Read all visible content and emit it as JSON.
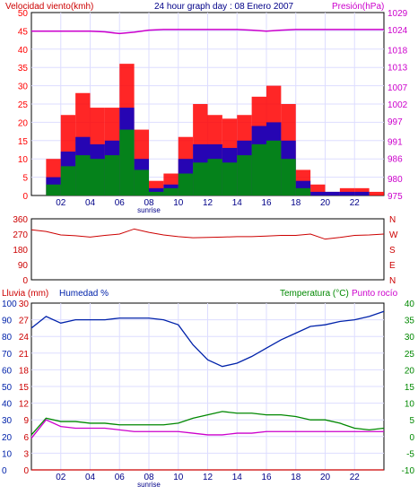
{
  "header": {
    "wind_label": "Velocidad viento(kmh)",
    "title": "24 hour graph day : 08 Enero 2007",
    "pressure_label": "Presión(hPa)"
  },
  "colors": {
    "wind_gust": "#ff0000",
    "wind_avg": "#0000cc",
    "wind_low": "#009900",
    "pressure": "#cc00cc",
    "direction": "#cc0000",
    "humidity": "#0022aa",
    "temperature": "#008800",
    "dewpoint": "#cc00cc",
    "rain": "#cc0000",
    "grid": "#ddddff",
    "axis": "#000000"
  },
  "chart_data": [
    {
      "type": "bar",
      "name": "wind",
      "title": "24 hour graph day : 08 Enero 2007",
      "ylabel": "Velocidad viento(kmh)",
      "ylim": [
        0,
        50
      ],
      "y_ticks": [
        "0",
        "5",
        "10",
        "15",
        "20",
        "25",
        "30",
        "35",
        "40",
        "45",
        "50"
      ],
      "x_ticks": [
        "02",
        "04",
        "06",
        "08",
        "10",
        "12",
        "14",
        "16",
        "18",
        "20",
        "22"
      ],
      "sunrise_label": "sunrise",
      "x": [
        0,
        1,
        2,
        3,
        4,
        5,
        6,
        7,
        8,
        9,
        10,
        11,
        12,
        13,
        14,
        15,
        16,
        17,
        18,
        19,
        20,
        21,
        22,
        23,
        24
      ],
      "series": [
        {
          "name": "gust",
          "values": [
            0,
            10,
            22,
            28,
            24,
            24,
            36,
            18,
            4,
            6,
            16,
            25,
            22,
            21,
            22,
            27,
            30,
            25,
            7,
            3,
            1,
            2,
            2,
            1,
            0
          ]
        },
        {
          "name": "average",
          "values": [
            0,
            5,
            12,
            16,
            14,
            15,
            24,
            10,
            2,
            3,
            10,
            14,
            14,
            13,
            15,
            19,
            20,
            15,
            4,
            1,
            1,
            1,
            1,
            0,
            0
          ]
        },
        {
          "name": "low",
          "values": [
            0,
            3,
            8,
            11,
            10,
            11,
            18,
            7,
            1,
            2,
            6,
            9,
            10,
            9,
            11,
            14,
            15,
            10,
            2,
            0,
            0,
            0,
            0,
            0,
            0
          ]
        }
      ]
    },
    {
      "type": "line",
      "name": "pressure",
      "ylabel": "Presión(hPa)",
      "ylim": [
        975,
        1029
      ],
      "y_ticks": [
        "975",
        "980",
        "986",
        "991",
        "997",
        "1002",
        "1007",
        "1013",
        "1018",
        "1024",
        "1029"
      ],
      "x": [
        0,
        1,
        2,
        3,
        4,
        5,
        6,
        7,
        8,
        9,
        10,
        11,
        12,
        13,
        14,
        15,
        16,
        17,
        18,
        19,
        20,
        21,
        22,
        23,
        24
      ],
      "values": [
        1023.5,
        1023.5,
        1023.5,
        1023.5,
        1023.5,
        1023.3,
        1022.8,
        1023.2,
        1023.8,
        1024.0,
        1024.0,
        1024.0,
        1024.0,
        1024.0,
        1024.0,
        1023.8,
        1023.5,
        1023.8,
        1024.0,
        1024.0,
        1024.0,
        1024.0,
        1024.0,
        1024.0,
        1024.0
      ]
    },
    {
      "type": "line",
      "name": "wind_direction",
      "ylim": [
        0,
        360
      ],
      "y_ticks": [
        "0",
        "90",
        "180",
        "270",
        "360"
      ],
      "compass_labels": [
        "N",
        "W",
        "S",
        "E",
        "N"
      ],
      "x": [
        0,
        1,
        2,
        3,
        4,
        5,
        6,
        7,
        8,
        9,
        10,
        11,
        12,
        13,
        14,
        15,
        16,
        17,
        18,
        19,
        20,
        21,
        22,
        23,
        24
      ],
      "values": [
        295,
        285,
        265,
        260,
        252,
        262,
        270,
        300,
        280,
        265,
        255,
        248,
        250,
        252,
        255,
        255,
        258,
        262,
        262,
        270,
        240,
        250,
        262,
        265,
        270
      ]
    },
    {
      "type": "line",
      "name": "humidity_temperature_rain",
      "left_labels": [
        "Lluvia (mm)",
        "Humedad %"
      ],
      "right_labels": [
        "Temperatura (°C)",
        "Punto rocío"
      ],
      "rain_ticks": [
        "0",
        "3",
        "6",
        "9",
        "12",
        "15",
        "18",
        "21",
        "24",
        "27",
        "30"
      ],
      "humidity_ticks": [
        "0",
        "10",
        "20",
        "30",
        "40",
        "50",
        "60",
        "70",
        "80",
        "90",
        "100"
      ],
      "temp_ticks": [
        "-10",
        "-5",
        "0",
        "5",
        "10",
        "15",
        "20",
        "25",
        "30",
        "35",
        "40"
      ],
      "x": [
        0,
        1,
        2,
        3,
        4,
        5,
        6,
        7,
        8,
        9,
        10,
        11,
        12,
        13,
        14,
        15,
        16,
        17,
        18,
        19,
        20,
        21,
        22,
        23,
        24
      ],
      "series": [
        {
          "name": "Humedad %",
          "values": [
            85,
            92,
            88,
            90,
            90,
            90,
            91,
            91,
            91,
            90,
            87,
            75,
            66,
            62,
            64,
            68,
            73,
            78,
            82,
            86,
            87,
            89,
            90,
            92,
            95
          ]
        },
        {
          "name": "Temperatura (°C)",
          "values": [
            0.5,
            5.5,
            4.5,
            4.5,
            4.0,
            4.0,
            3.5,
            3.5,
            3.5,
            3.5,
            4.0,
            5.5,
            6.5,
            7.5,
            7.0,
            7.0,
            6.5,
            6.5,
            6.0,
            5.0,
            5.0,
            4.0,
            2.5,
            2.0,
            2.5
          ]
        },
        {
          "name": "Punto rocío",
          "values": [
            -0.5,
            5.0,
            3.0,
            2.5,
            2.5,
            2.5,
            2.0,
            1.5,
            1.5,
            1.5,
            1.5,
            1.0,
            0.5,
            0.5,
            1.0,
            1.0,
            1.5,
            1.5,
            1.5,
            1.5,
            1.5,
            1.5,
            1.5,
            1.5,
            1.5
          ]
        },
        {
          "name": "Lluvia (mm)",
          "values": [
            0,
            0,
            0,
            0,
            0,
            0,
            0,
            0,
            0,
            0,
            0,
            0,
            0,
            0,
            0,
            0,
            0,
            0,
            0,
            0,
            0,
            0,
            0,
            0,
            0
          ]
        }
      ]
    }
  ]
}
